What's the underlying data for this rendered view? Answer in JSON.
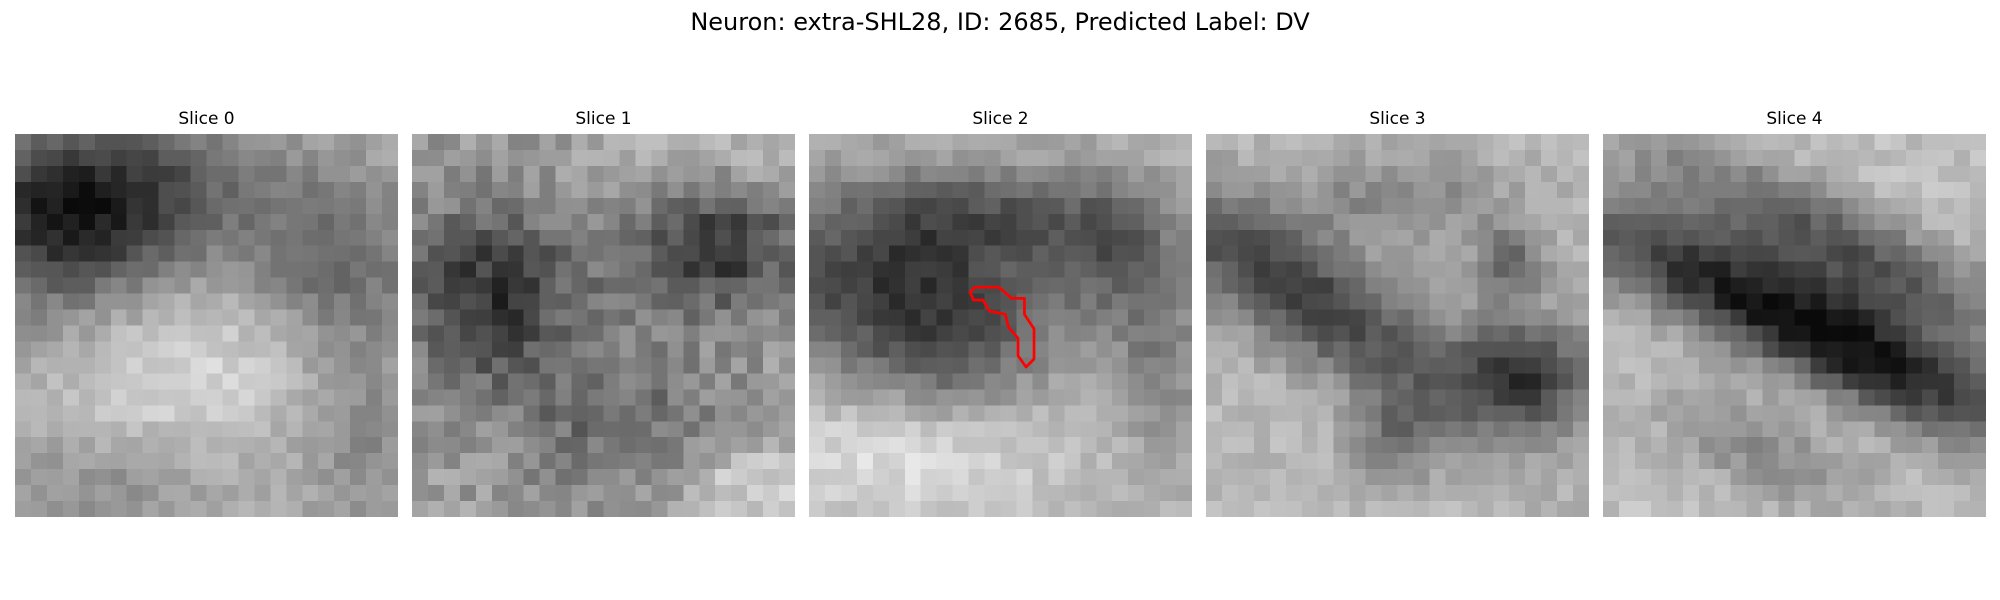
{
  "figure": {
    "title": "Neuron: extra-SHL28, ID: 2685, Predicted Label: DV"
  },
  "panels": [
    {
      "label": "Slice 0"
    },
    {
      "label": "Slice 1"
    },
    {
      "label": "Slice 2"
    },
    {
      "label": "Slice 3"
    },
    {
      "label": "Slice 4"
    }
  ],
  "colors": {
    "contour": "#ff0000",
    "background": "#ffffff"
  },
  "image": {
    "grid_cells": 24,
    "colormap": "grayscale",
    "contour_slice_index": 2
  }
}
